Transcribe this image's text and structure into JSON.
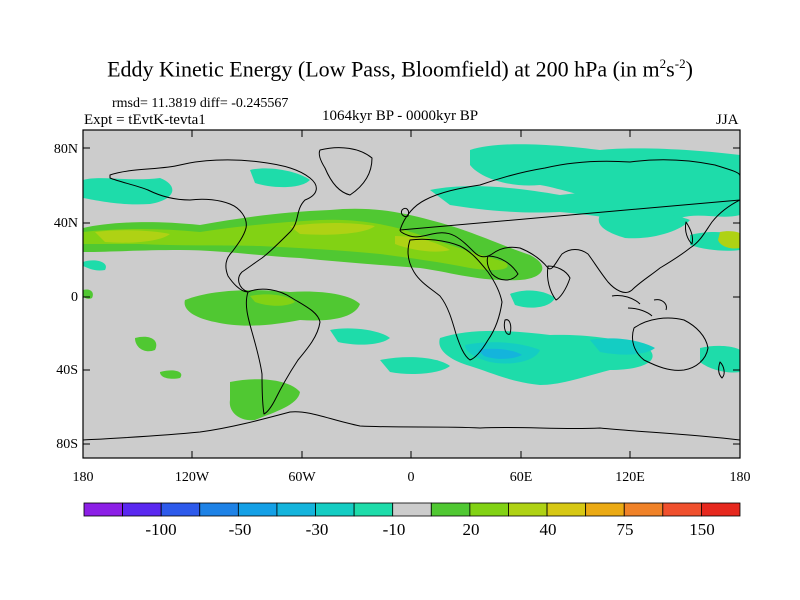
{
  "title": {
    "main": "Eddy Kinetic Energy (Low Pass, Bloomfield) at 200 hPa (in m",
    "sup1": "2",
    "mid": "s",
    "sup2": "-2",
    "close": ")"
  },
  "stats": "rmsd= 11.3819 diff= -0.245567",
  "experiment": "Expt = tEvtK-tevta1",
  "period": "1064kyr BP - 0000kyr BP",
  "season": "JJA",
  "axes": {
    "lat_labels": [
      "80N",
      "40N",
      "0",
      "40S",
      "80S"
    ],
    "lon_labels": [
      "180",
      "120W",
      "60W",
      "0",
      "60E",
      "120E",
      "180"
    ]
  },
  "colorbar": {
    "colors": [
      "#8c1fe6",
      "#5a28f0",
      "#2d5aeb",
      "#1e82e6",
      "#14a0e6",
      "#14b4dc",
      "#14cdc3",
      "#1edcaa",
      "#cccccc",
      "#50c832",
      "#82d214",
      "#afd214",
      "#d7c814",
      "#ebaa14",
      "#f08228",
      "#f0502d",
      "#e6281e"
    ],
    "labels": [
      "-100",
      "-50",
      "-30",
      "-10",
      "20",
      "40",
      "75",
      "150"
    ]
  },
  "colors": {
    "background": "#cccccc",
    "cyan": "#1edcaa",
    "cyan_dark": "#14cdc3",
    "blue": "#14b4dc",
    "green_light": "#82d214",
    "green": "#50c832",
    "yellow_green": "#afd214",
    "yellow": "#d7c814",
    "orange": "#ebaa14"
  }
}
